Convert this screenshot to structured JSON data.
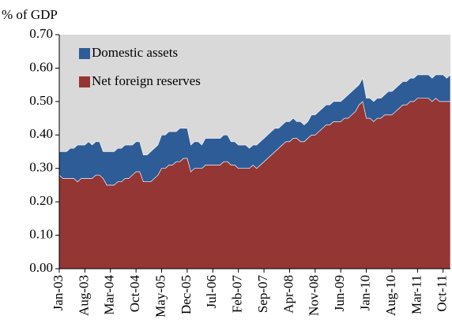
{
  "chart_data": {
    "type": "stacked_area",
    "y_label": "% of GDP",
    "categories": [
      "Jan-03",
      null,
      null,
      null,
      null,
      null,
      null,
      "Aug-03",
      null,
      null,
      null,
      null,
      null,
      null,
      "Mar-04",
      null,
      null,
      null,
      null,
      null,
      null,
      "Oct-04",
      null,
      null,
      null,
      null,
      null,
      null,
      "May-05",
      null,
      null,
      null,
      null,
      null,
      null,
      "Dec-05",
      null,
      null,
      null,
      null,
      null,
      null,
      "Jul-06",
      null,
      null,
      null,
      null,
      null,
      null,
      "Feb-07",
      null,
      null,
      null,
      null,
      null,
      null,
      "Sep-07",
      null,
      null,
      null,
      null,
      null,
      null,
      "Apr-08",
      null,
      null,
      null,
      null,
      null,
      null,
      "Nov-08",
      null,
      null,
      null,
      null,
      null,
      null,
      "Jun-09",
      null,
      null,
      null,
      null,
      null,
      null,
      "Jan-10",
      null,
      null,
      null,
      null,
      null,
      null,
      "Aug-10",
      null,
      null,
      null,
      null,
      null,
      null,
      "Mar-11",
      null,
      null,
      null,
      null,
      null,
      null,
      "Oct-11",
      null,
      null
    ],
    "series": [
      {
        "name": "Net foreign reserves",
        "color": "#943634",
        "values": [
          0.28,
          0.27,
          0.27,
          0.27,
          0.27,
          0.26,
          0.27,
          0.27,
          0.27,
          0.27,
          0.28,
          0.28,
          0.27,
          0.25,
          0.25,
          0.25,
          0.26,
          0.26,
          0.27,
          0.27,
          0.28,
          0.29,
          0.29,
          0.26,
          0.26,
          0.26,
          0.27,
          0.28,
          0.3,
          0.3,
          0.31,
          0.31,
          0.32,
          0.32,
          0.33,
          0.33,
          0.29,
          0.3,
          0.3,
          0.3,
          0.31,
          0.31,
          0.31,
          0.31,
          0.31,
          0.32,
          0.32,
          0.31,
          0.31,
          0.3,
          0.3,
          0.3,
          0.3,
          0.31,
          0.3,
          0.31,
          0.32,
          0.33,
          0.34,
          0.35,
          0.36,
          0.37,
          0.38,
          0.38,
          0.39,
          0.39,
          0.38,
          0.38,
          0.39,
          0.4,
          0.4,
          0.41,
          0.42,
          0.43,
          0.43,
          0.44,
          0.44,
          0.44,
          0.45,
          0.45,
          0.46,
          0.47,
          0.49,
          0.5,
          0.45,
          0.45,
          0.44,
          0.45,
          0.45,
          0.46,
          0.46,
          0.46,
          0.47,
          0.48,
          0.49,
          0.49,
          0.5,
          0.5,
          0.51,
          0.51,
          0.51,
          0.51,
          0.5,
          0.51,
          0.5,
          0.5,
          0.5,
          0.5
        ]
      },
      {
        "name": "Domestic assets",
        "color": "#2e5c96",
        "values": [
          0.07,
          0.08,
          0.08,
          0.09,
          0.09,
          0.11,
          0.1,
          0.1,
          0.11,
          0.1,
          0.1,
          0.1,
          0.08,
          0.1,
          0.1,
          0.1,
          0.1,
          0.1,
          0.1,
          0.1,
          0.09,
          0.09,
          0.09,
          0.08,
          0.08,
          0.09,
          0.09,
          0.09,
          0.1,
          0.1,
          0.1,
          0.1,
          0.09,
          0.1,
          0.09,
          0.09,
          0.08,
          0.08,
          0.08,
          0.07,
          0.08,
          0.08,
          0.08,
          0.08,
          0.08,
          0.08,
          0.08,
          0.07,
          0.07,
          0.07,
          0.07,
          0.07,
          0.06,
          0.06,
          0.07,
          0.07,
          0.07,
          0.07,
          0.07,
          0.07,
          0.06,
          0.06,
          0.06,
          0.06,
          0.06,
          0.05,
          0.06,
          0.05,
          0.05,
          0.06,
          0.06,
          0.06,
          0.06,
          0.06,
          0.06,
          0.06,
          0.06,
          0.06,
          0.06,
          0.07,
          0.07,
          0.07,
          0.06,
          0.07,
          0.06,
          0.06,
          0.06,
          0.06,
          0.06,
          0.06,
          0.07,
          0.07,
          0.07,
          0.07,
          0.07,
          0.07,
          0.07,
          0.07,
          0.07,
          0.07,
          0.07,
          0.07,
          0.07,
          0.07,
          0.08,
          0.08,
          0.07,
          0.08
        ]
      }
    ],
    "ylim": [
      0,
      0.7
    ],
    "yticks": [
      {
        "value": 0,
        "label": "0.00"
      },
      {
        "value": 0.1,
        "label": "0.10"
      },
      {
        "value": 0.2,
        "label": "0.20"
      },
      {
        "value": 0.3,
        "label": "0.30"
      },
      {
        "value": 0.4,
        "label": "0.40"
      },
      {
        "value": 0.5,
        "label": "0.50"
      },
      {
        "value": 0.6,
        "label": "0.60"
      },
      {
        "value": 0.7,
        "label": "0.70"
      }
    ],
    "legend": "upper left",
    "background": "#d9d9d9"
  }
}
